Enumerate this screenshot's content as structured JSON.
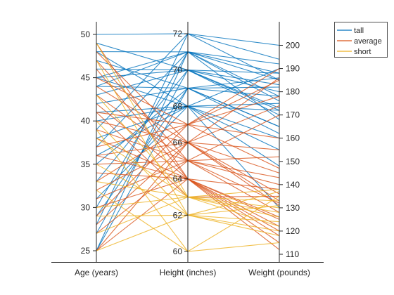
{
  "chart_data": {
    "type": "parallel-coordinates",
    "dimensions": [
      {
        "label": "Age (years)",
        "range": [
          25,
          50
        ],
        "ticks": [
          25,
          30,
          35,
          40,
          45,
          50
        ]
      },
      {
        "label": "Height (inches)",
        "range": [
          60,
          72
        ],
        "ticks": [
          60,
          62,
          64,
          66,
          68,
          70,
          72
        ]
      },
      {
        "label": "Weight (pounds)",
        "range": [
          110,
          205
        ],
        "ticks": [
          110,
          120,
          130,
          140,
          150,
          160,
          170,
          180,
          190,
          200
        ]
      }
    ],
    "groups": [
      {
        "name": "tall",
        "color": "#0072BD"
      },
      {
        "name": "average",
        "color": "#D95319"
      },
      {
        "name": "short",
        "color": "#EDB120"
      }
    ],
    "records": [
      {
        "group": "tall",
        "values": [
          50,
          72,
          200
        ]
      },
      {
        "group": "tall",
        "values": [
          48,
          71,
          176
        ]
      },
      {
        "group": "tall",
        "values": [
          45,
          71,
          185
        ]
      },
      {
        "group": "tall",
        "values": [
          44,
          71,
          192
        ]
      },
      {
        "group": "tall",
        "values": [
          46,
          70,
          188
        ]
      },
      {
        "group": "tall",
        "values": [
          45,
          70,
          180
        ]
      },
      {
        "group": "tall",
        "values": [
          43,
          70,
          172
        ]
      },
      {
        "group": "tall",
        "values": [
          49,
          70,
          183
        ]
      },
      {
        "group": "tall",
        "values": [
          47,
          69,
          178
        ]
      },
      {
        "group": "tall",
        "values": [
          44,
          69,
          165
        ]
      },
      {
        "group": "tall",
        "values": [
          42,
          69,
          186
        ]
      },
      {
        "group": "tall",
        "values": [
          41,
          68,
          175
        ]
      },
      {
        "group": "tall",
        "values": [
          40,
          68,
          160
        ]
      },
      {
        "group": "tall",
        "values": [
          38,
          68,
          172
        ]
      },
      {
        "group": "tall",
        "values": [
          36,
          68,
          190
        ]
      },
      {
        "group": "tall",
        "values": [
          35,
          69,
          182
        ]
      },
      {
        "group": "tall",
        "values": [
          33,
          70,
          170
        ]
      },
      {
        "group": "tall",
        "values": [
          31,
          68,
          155
        ]
      },
      {
        "group": "tall",
        "values": [
          30,
          71,
          178
        ]
      },
      {
        "group": "tall",
        "values": [
          29,
          69,
          165
        ]
      },
      {
        "group": "tall",
        "values": [
          28,
          72,
          185
        ]
      },
      {
        "group": "tall",
        "values": [
          27,
          70,
          173
        ]
      },
      {
        "group": "tall",
        "values": [
          25,
          71,
          188
        ]
      },
      {
        "group": "tall",
        "values": [
          25,
          69,
          162
        ]
      },
      {
        "group": "tall",
        "values": [
          39,
          72,
          194
        ]
      },
      {
        "group": "tall",
        "values": [
          45,
          68,
          148
        ]
      },
      {
        "group": "tall",
        "values": [
          48,
          68,
          130
        ]
      },
      {
        "group": "tall",
        "values": [
          37,
          71,
          168
        ]
      },
      {
        "group": "average",
        "values": [
          48,
          66,
          174
        ]
      },
      {
        "group": "average",
        "values": [
          47,
          65,
          140
        ]
      },
      {
        "group": "average",
        "values": [
          46,
          64,
          125
        ]
      },
      {
        "group": "average",
        "values": [
          45,
          67,
          185
        ]
      },
      {
        "group": "average",
        "values": [
          44,
          66,
          133
        ]
      },
      {
        "group": "average",
        "values": [
          43,
          65,
          152
        ]
      },
      {
        "group": "average",
        "values": [
          42,
          64,
          120
        ]
      },
      {
        "group": "average",
        "values": [
          41,
          67,
          178
        ]
      },
      {
        "group": "average",
        "values": [
          40,
          66,
          145
        ]
      },
      {
        "group": "average",
        "values": [
          39,
          65,
          128
        ]
      },
      {
        "group": "average",
        "values": [
          38,
          64,
          138
        ]
      },
      {
        "group": "average",
        "values": [
          37,
          67,
          160
        ]
      },
      {
        "group": "average",
        "values": [
          36,
          66,
          186
        ]
      },
      {
        "group": "average",
        "values": [
          35,
          65,
          132
        ]
      },
      {
        "group": "average",
        "values": [
          34,
          64,
          115
        ]
      },
      {
        "group": "average",
        "values": [
          33,
          67,
          147
        ]
      },
      {
        "group": "average",
        "values": [
          32,
          66,
          136
        ]
      },
      {
        "group": "average",
        "values": [
          31,
          65,
          170
        ]
      },
      {
        "group": "average",
        "values": [
          30,
          64,
          126
        ]
      },
      {
        "group": "average",
        "values": [
          29,
          67,
          190
        ]
      },
      {
        "group": "average",
        "values": [
          28,
          66,
          131
        ]
      },
      {
        "group": "average",
        "values": [
          27,
          65,
          143
        ]
      },
      {
        "group": "average",
        "values": [
          25,
          64,
          122
        ]
      },
      {
        "group": "average",
        "values": [
          25,
          66,
          155
        ]
      },
      {
        "group": "average",
        "values": [
          49,
          64,
          112
        ]
      },
      {
        "group": "average",
        "values": [
          41,
          63,
          135
        ]
      },
      {
        "group": "average",
        "values": [
          36,
          64,
          118
        ]
      },
      {
        "group": "short",
        "values": [
          49,
          63,
          130
        ]
      },
      {
        "group": "short",
        "values": [
          47,
          62,
          120
        ]
      },
      {
        "group": "short",
        "values": [
          43,
          63,
          138
        ]
      },
      {
        "group": "short",
        "values": [
          40,
          62,
          124
        ]
      },
      {
        "group": "short",
        "values": [
          38,
          63,
          133
        ]
      },
      {
        "group": "short",
        "values": [
          35,
          62,
          118
        ]
      },
      {
        "group": "short",
        "values": [
          33,
          63,
          128
        ]
      },
      {
        "group": "short",
        "values": [
          32,
          60,
          135
        ]
      },
      {
        "group": "short",
        "values": [
          29,
          62,
          131
        ]
      },
      {
        "group": "short",
        "values": [
          27,
          63,
          126
        ]
      },
      {
        "group": "short",
        "values": [
          25,
          62,
          137
        ]
      },
      {
        "group": "short",
        "values": [
          39,
          60,
          115
        ]
      },
      {
        "group": "short",
        "values": [
          30,
          63,
          122
        ]
      }
    ]
  }
}
